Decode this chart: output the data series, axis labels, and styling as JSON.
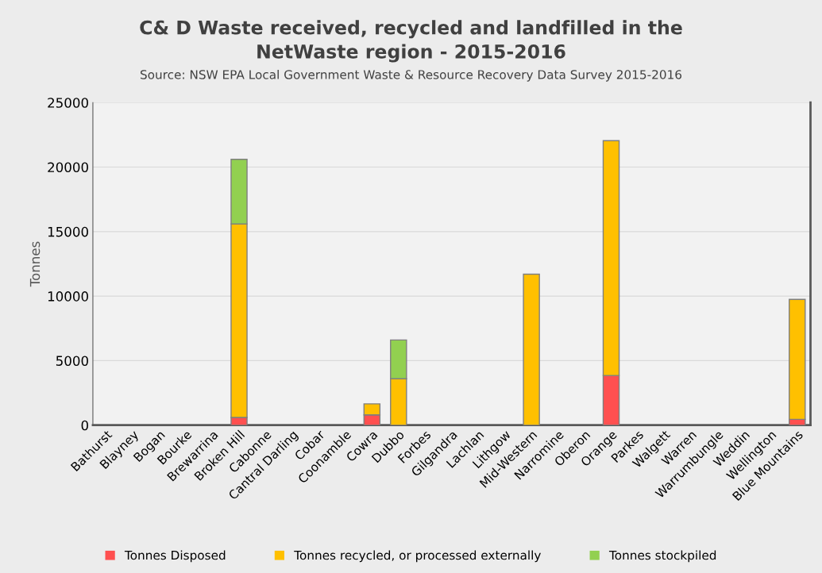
{
  "chart_data": {
    "type": "bar",
    "stacked": true,
    "title": "C& D Waste received, recycled and landfilled in the\nNetWaste region - 2015-2016",
    "subtitle": "Source: NSW EPA Local Government Waste & Resource Recovery Data Survey 2015-2016",
    "ylabel": "Tonnes",
    "categories": [
      "Bathurst",
      "Blayney",
      "Bogan",
      "Bourke",
      "Brewarrina",
      "Broken Hill",
      "Cabonne",
      "Cantral Darling",
      "Cobar",
      "Coonamble",
      "Cowra",
      "Dubbo",
      "Forbes",
      "Gilgandra",
      "Lachlan",
      "Lithgow",
      "Mid-Western",
      "Narromine",
      "Oberon",
      "Orange",
      "Parkes",
      "Walgett",
      "Warren",
      "Warrumbungle",
      "Weddin",
      "Wellington",
      "Blue Mountains"
    ],
    "series": [
      {
        "name": "Tonnes Disposed",
        "color": "#ff5050",
        "values": [
          0,
          0,
          0,
          0,
          0,
          600,
          0,
          0,
          0,
          0,
          800,
          0,
          0,
          0,
          0,
          0,
          0,
          0,
          0,
          3850,
          0,
          0,
          0,
          0,
          0,
          0,
          450
        ]
      },
      {
        "name": "Tonnes recycled, or processed externally",
        "color": "#ffc000",
        "values": [
          0,
          0,
          0,
          0,
          0,
          15000,
          0,
          0,
          0,
          0,
          850,
          3600,
          0,
          0,
          0,
          0,
          11700,
          0,
          0,
          18200,
          0,
          0,
          0,
          0,
          0,
          0,
          9300
        ]
      },
      {
        "name": "Tonnes stockpiled",
        "color": "#92d050",
        "values": [
          0,
          0,
          0,
          0,
          0,
          5000,
          0,
          0,
          0,
          0,
          0,
          3000,
          0,
          0,
          0,
          0,
          0,
          0,
          0,
          0,
          0,
          0,
          0,
          0,
          0,
          0,
          0
        ]
      }
    ],
    "ylim": [
      0,
      25000
    ],
    "yticks": [
      0,
      5000,
      10000,
      15000,
      20000,
      25000
    ],
    "grid": "y",
    "legend": "bottom"
  }
}
